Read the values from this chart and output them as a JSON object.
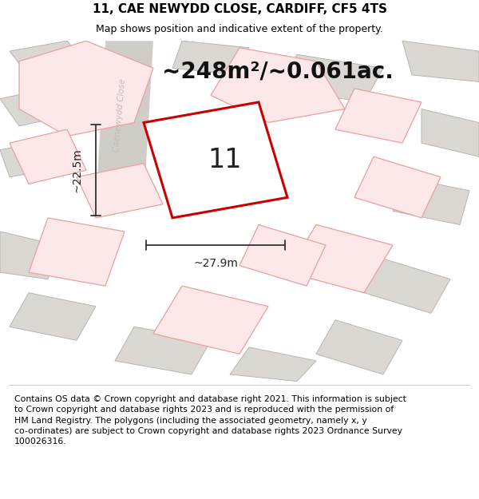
{
  "title": "11, CAE NEWYDD CLOSE, CARDIFF, CF5 4TS",
  "subtitle": "Map shows position and indicative extent of the property.",
  "footer": "Contains OS data © Crown copyright and database right 2021. This information is subject\nto Crown copyright and database rights 2023 and is reproduced with the permission of\nHM Land Registry. The polygons (including the associated geometry, namely x, y\nco-ordinates) are subject to Crown copyright and database rights 2023 Ordnance Survey\n100026316.",
  "area_label": "~248m²/~0.061ac.",
  "width_label": "~27.9m",
  "height_label": "~22.5m",
  "plot_number": "11",
  "map_bg": "#ebe8e3",
  "highlight_fill": "#ffffff",
  "highlight_edge": "#cc0000",
  "building_fill": "#dbd8d3",
  "building_edge": "#b8b5b0",
  "pink_fill": "#fce8e8",
  "pink_edge": "#e8a0a0",
  "street_label_color": "#c0bcb8",
  "title_fontsize": 11,
  "subtitle_fontsize": 9,
  "footer_fontsize": 7.8,
  "area_label_fontsize": 20,
  "dim_fontsize": 10,
  "plot_num_fontsize": 24
}
